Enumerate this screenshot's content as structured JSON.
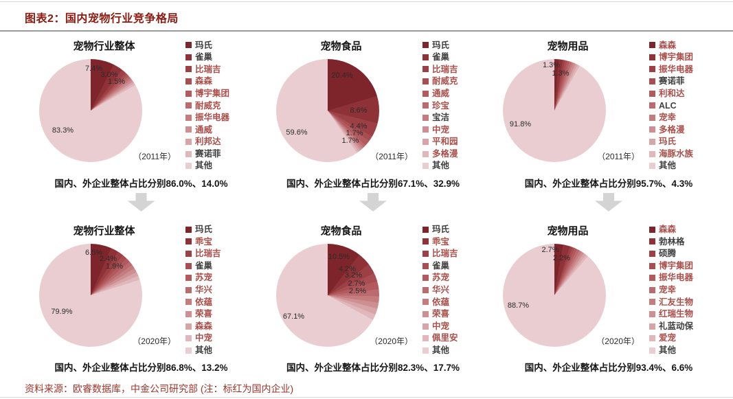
{
  "page": {
    "title": "图表2：国内宠物行业竞争格局",
    "footer": "资料来源：欧睿数据库，中金公司研究部 (注：标红为国内企业)"
  },
  "colors": {
    "accent": "#8a1a10",
    "footer_red": "#9e352b",
    "legend_red": "#aa4f4a",
    "legend_black": "#404040",
    "arrow_gray": "#d4d4d4",
    "slice_palette": [
      "#7e242b",
      "#8e3238",
      "#9c4045",
      "#a84d51",
      "#b25a5e",
      "#bb6a6d",
      "#c47c7f",
      "#cd8f92",
      "#d7a4a7",
      "#e0b8bb",
      "#e9cdd1"
    ]
  },
  "chart_data": [
    {
      "type": "pie",
      "title": "宠物行业整体",
      "year": "（2011年）",
      "caption_prefix": "国内、外企业整体占比分别",
      "caption_values": "86.0%、14.0%",
      "legend_position": "right",
      "series": [
        {
          "name": "玛氏",
          "value": 7.4,
          "domestic": false
        },
        {
          "name": "雀巢",
          "value": 3.0,
          "domestic": false
        },
        {
          "name": "比瑞吉",
          "value": 1.5,
          "domestic": true
        },
        {
          "name": "森森",
          "value": 0.7,
          "domestic": true
        },
        {
          "name": "博宇集团",
          "value": 0.7,
          "domestic": true
        },
        {
          "name": "耐威克",
          "value": 0.7,
          "domestic": true
        },
        {
          "name": "振华电器",
          "value": 0.7,
          "domestic": true
        },
        {
          "name": "通威",
          "value": 0.7,
          "domestic": true
        },
        {
          "name": "利邦达",
          "value": 0.6,
          "domestic": true
        },
        {
          "name": "赛诺菲",
          "value": 0.7,
          "domestic": false
        },
        {
          "name": "其他",
          "value": 83.3,
          "domestic": false
        }
      ],
      "labels": [
        {
          "text": "7.4%",
          "x": 53,
          "y": 9
        },
        {
          "text": "3.0%",
          "x": 68,
          "y": 15
        },
        {
          "text": "1.5%",
          "x": 75,
          "y": 22
        },
        {
          "text": "83.3%",
          "x": 23,
          "y": 69
        }
      ]
    },
    {
      "type": "pie",
      "title": "宠物食品",
      "year": "（2011年）",
      "caption_prefix": "国内、外企业整体占比分别",
      "caption_values": "67.1%、32.9%",
      "legend_position": "right",
      "series": [
        {
          "name": "玛氏",
          "value": 20.4,
          "domestic": false
        },
        {
          "name": "雀巢",
          "value": 8.6,
          "domestic": false
        },
        {
          "name": "比瑞吉",
          "value": 4.4,
          "domestic": true
        },
        {
          "name": "耐威克",
          "value": 1.7,
          "domestic": true
        },
        {
          "name": "通威",
          "value": 1.7,
          "domestic": true
        },
        {
          "name": "珍宝",
          "value": 0.8,
          "domestic": true
        },
        {
          "name": "宝洁",
          "value": 0.7,
          "domestic": false
        },
        {
          "name": "中宠",
          "value": 0.7,
          "domestic": true
        },
        {
          "name": "平和园",
          "value": 0.7,
          "domestic": true
        },
        {
          "name": "多格漫",
          "value": 0.7,
          "domestic": true
        },
        {
          "name": "其他",
          "value": 59.6,
          "domestic": false
        }
      ],
      "labels": [
        {
          "text": "20.4%",
          "x": 64,
          "y": 16
        },
        {
          "text": "8.6%",
          "x": 80,
          "y": 50
        },
        {
          "text": "4.4%",
          "x": 80,
          "y": 65
        },
        {
          "text": "1.7%",
          "x": 76,
          "y": 72
        },
        {
          "text": "1.7%",
          "x": 72,
          "y": 79
        },
        {
          "text": "59.6%",
          "x": 20,
          "y": 71
        }
      ]
    },
    {
      "type": "pie",
      "title": "宠物用品",
      "year": "（2011年）",
      "caption_prefix": "国内、外企业整体占比分别",
      "caption_values": "95.7%、4.3%",
      "legend_position": "right",
      "series": [
        {
          "name": "森森",
          "value": 1.3,
          "domestic": true
        },
        {
          "name": "博宇集团",
          "value": 1.3,
          "domestic": true
        },
        {
          "name": "振华电器",
          "value": 0.7,
          "domestic": true
        },
        {
          "name": "赛诺菲",
          "value": 0.7,
          "domestic": false
        },
        {
          "name": "利和达",
          "value": 0.7,
          "domestic": true
        },
        {
          "name": "ALC",
          "value": 0.7,
          "domestic": false
        },
        {
          "name": "宠幸",
          "value": 0.7,
          "domestic": true
        },
        {
          "name": "多格漫",
          "value": 0.7,
          "domestic": true
        },
        {
          "name": "玛氏",
          "value": 0.7,
          "domestic": true
        },
        {
          "name": "海豚水族",
          "value": 0.7,
          "domestic": true
        },
        {
          "name": "其他",
          "value": 91.8,
          "domestic": false
        }
      ],
      "labels": [
        {
          "text": "1.3%",
          "x": 47,
          "y": 6
        },
        {
          "text": "1.3%",
          "x": 56,
          "y": 14
        },
        {
          "text": "91.8%",
          "x": 17,
          "y": 63
        }
      ]
    },
    {
      "type": "pie",
      "title": "宠物行业整体",
      "year": "（2020年）",
      "caption_prefix": "国内、外企业整体占比分别",
      "caption_values": "86.8%、13.2%",
      "legend_position": "right",
      "series": [
        {
          "name": "玛氏",
          "value": 6.5,
          "domestic": false
        },
        {
          "name": "乖宝",
          "value": 2.4,
          "domestic": true
        },
        {
          "name": "比瑞吉",
          "value": 1.9,
          "domestic": true
        },
        {
          "name": "雀巢",
          "value": 1.4,
          "domestic": false
        },
        {
          "name": "苏宠",
          "value": 1.4,
          "domestic": true
        },
        {
          "name": "华兴",
          "value": 1.3,
          "domestic": true
        },
        {
          "name": "依蕴",
          "value": 1.3,
          "domestic": true
        },
        {
          "name": "荣喜",
          "value": 1.3,
          "domestic": true
        },
        {
          "name": "森森",
          "value": 1.3,
          "domestic": true
        },
        {
          "name": "中宠",
          "value": 1.3,
          "domestic": true
        },
        {
          "name": "其他",
          "value": 79.9,
          "domestic": false
        }
      ],
      "labels": [
        {
          "text": "6.5%",
          "x": 53,
          "y": 9
        },
        {
          "text": "2.4%",
          "x": 67,
          "y": 15
        },
        {
          "text": "1.9%",
          "x": 73,
          "y": 22
        },
        {
          "text": "79.9%",
          "x": 22,
          "y": 66
        }
      ]
    },
    {
      "type": "pie",
      "title": "宠物食品",
      "year": "（2020年）",
      "caption_prefix": "国内、外企业整体占比分别",
      "caption_values": "82.3%、17.7%",
      "legend_position": "right",
      "series": [
        {
          "name": "玛氏",
          "value": 10.5,
          "domestic": false
        },
        {
          "name": "乖宝",
          "value": 4.2,
          "domestic": true
        },
        {
          "name": "比瑞吉",
          "value": 3.2,
          "domestic": true
        },
        {
          "name": "雀巢",
          "value": 2.7,
          "domestic": false
        },
        {
          "name": "苏宠",
          "value": 2.5,
          "domestic": true
        },
        {
          "name": "华兴",
          "value": 2.2,
          "domestic": true
        },
        {
          "name": "依蕴",
          "value": 2.0,
          "domestic": true
        },
        {
          "name": "荣喜",
          "value": 1.9,
          "domestic": true
        },
        {
          "name": "中宠",
          "value": 1.9,
          "domestic": true
        },
        {
          "name": "佩里安",
          "value": 1.8,
          "domestic": true
        },
        {
          "name": "其他",
          "value": 67.1,
          "domestic": false
        }
      ],
      "labels": [
        {
          "text": "10.5%",
          "x": 61,
          "y": 13
        },
        {
          "text": "4.2%",
          "x": 69,
          "y": 25
        },
        {
          "text": "3.2%",
          "x": 75,
          "y": 31
        },
        {
          "text": "2.7%",
          "x": 78,
          "y": 39
        },
        {
          "text": "2.5%",
          "x": 79,
          "y": 46
        },
        {
          "text": "67.1%",
          "x": 17,
          "y": 71
        }
      ]
    },
    {
      "type": "pie",
      "title": "宠物用品",
      "year": "（2020年）",
      "caption_prefix": "国内、外企业整体占比分别",
      "caption_values": "93.4%、6.6%",
      "legend_position": "right",
      "series": [
        {
          "name": "森森",
          "value": 2.7,
          "domestic": true
        },
        {
          "name": "勃林格",
          "value": 2.2,
          "domestic": false
        },
        {
          "name": "硕腾",
          "value": 0.8,
          "domestic": false
        },
        {
          "name": "博宇集团",
          "value": 0.8,
          "domestic": true
        },
        {
          "name": "振华电器",
          "value": 0.8,
          "domestic": true
        },
        {
          "name": "宠幸",
          "value": 0.8,
          "domestic": true
        },
        {
          "name": "汇友生物",
          "value": 0.8,
          "domestic": true
        },
        {
          "name": "红瑞生物",
          "value": 0.8,
          "domestic": true
        },
        {
          "name": "礼蓝动保",
          "value": 0.8,
          "domestic": false
        },
        {
          "name": "爱宠",
          "value": 0.8,
          "domestic": true
        },
        {
          "name": "其他",
          "value": 88.7,
          "domestic": false
        }
      ],
      "labels": [
        {
          "text": "2.7%",
          "x": 46,
          "y": 6
        },
        {
          "text": "2.2%",
          "x": 57,
          "y": 14
        },
        {
          "text": "88.7%",
          "x": 15,
          "y": 60
        }
      ]
    }
  ]
}
